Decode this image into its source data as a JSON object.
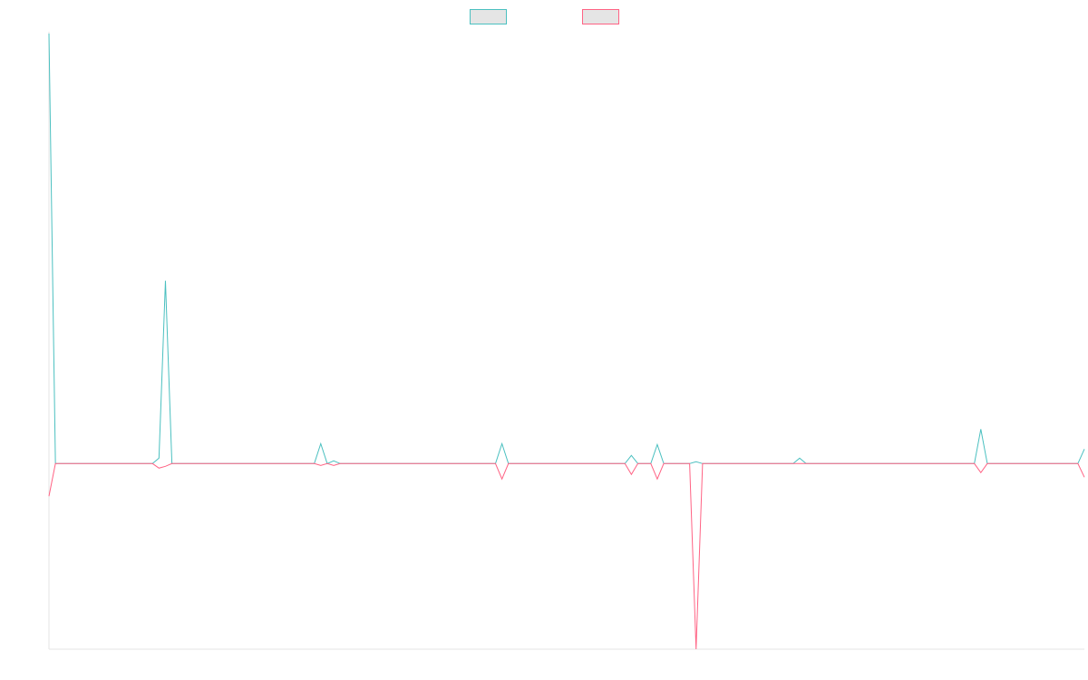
{
  "chart_data": {
    "type": "line",
    "title": "",
    "xlabel": "",
    "ylabel": "",
    "x": [
      0,
      1,
      2,
      3,
      4,
      5,
      6,
      7,
      8,
      9,
      10,
      11,
      12,
      13,
      14,
      15,
      16,
      17,
      18,
      19,
      20,
      21,
      22,
      23,
      24,
      25,
      26,
      27,
      28,
      29,
      30,
      31,
      32,
      33,
      34,
      35,
      36,
      37,
      38,
      39,
      40,
      41,
      42,
      43,
      44,
      45,
      46,
      47,
      48,
      49,
      50,
      51,
      52,
      53,
      54,
      55,
      56,
      57,
      58,
      59,
      60,
      61,
      62,
      63,
      64,
      65,
      66,
      67,
      68,
      69,
      70,
      71,
      72,
      73,
      74,
      75,
      76,
      77,
      78,
      79,
      80,
      81,
      82,
      83,
      84,
      85,
      86,
      87,
      88,
      89,
      90,
      91,
      92,
      93,
      94,
      95,
      96,
      97,
      98,
      99,
      100,
      101,
      102,
      103,
      104,
      105,
      106,
      107,
      108,
      109,
      110,
      111,
      112,
      113,
      114,
      115,
      116,
      117,
      118,
      119,
      120,
      121,
      122,
      123,
      124,
      125,
      126,
      127,
      128,
      129,
      130,
      131,
      132,
      133,
      134,
      135,
      136,
      137,
      138,
      139,
      140,
      141,
      142,
      143,
      144,
      145,
      146,
      147,
      148,
      149,
      150,
      151,
      152,
      153,
      154,
      155,
      156,
      157,
      158,
      159,
      160
    ],
    "ylim": [
      -205,
      475
    ],
    "grid": false,
    "legend_position": "top-center",
    "series": [
      {
        "name": "",
        "color": "#4bc0c0",
        "values": [
          475,
          0,
          0,
          0,
          0,
          0,
          0,
          0,
          0,
          0,
          0,
          0,
          0,
          0,
          0,
          0,
          0,
          6,
          202,
          0,
          0,
          0,
          0,
          0,
          0,
          0,
          0,
          0,
          0,
          0,
          0,
          0,
          0,
          0,
          0,
          0,
          0,
          0,
          0,
          0,
          0,
          0,
          22,
          0,
          3,
          0,
          0,
          0,
          0,
          0,
          0,
          0,
          0,
          0,
          0,
          0,
          0,
          0,
          0,
          0,
          0,
          0,
          0,
          0,
          0,
          0,
          0,
          0,
          0,
          0,
          22,
          0,
          0,
          0,
          0,
          0,
          0,
          0,
          0,
          0,
          0,
          0,
          0,
          0,
          0,
          0,
          0,
          0,
          0,
          0,
          9,
          0,
          0,
          0,
          21,
          0,
          0,
          0,
          0,
          0,
          2,
          0,
          0,
          0,
          0,
          0,
          0,
          0,
          0,
          0,
          0,
          0,
          0,
          0,
          0,
          0,
          6,
          0,
          0,
          0,
          0,
          0,
          0,
          0,
          0,
          0,
          0,
          0,
          0,
          0,
          0,
          0,
          0,
          0,
          0,
          0,
          0,
          0,
          0,
          0,
          0,
          0,
          0,
          0,
          38,
          0,
          0,
          0,
          0,
          0,
          0,
          0,
          0,
          0,
          0,
          0,
          0,
          0,
          0,
          0,
          16
        ]
      },
      {
        "name": "",
        "color": "#ff6384",
        "values": [
          -36,
          0,
          0,
          0,
          0,
          0,
          0,
          0,
          0,
          0,
          0,
          0,
          0,
          0,
          0,
          0,
          0,
          -5,
          -3,
          0,
          0,
          0,
          0,
          0,
          0,
          0,
          0,
          0,
          0,
          0,
          0,
          0,
          0,
          0,
          0,
          0,
          0,
          0,
          0,
          0,
          0,
          0,
          -2,
          0,
          -2,
          0,
          0,
          0,
          0,
          0,
          0,
          0,
          0,
          0,
          0,
          0,
          0,
          0,
          0,
          0,
          0,
          0,
          0,
          0,
          0,
          0,
          0,
          0,
          0,
          0,
          -17,
          0,
          0,
          0,
          0,
          0,
          0,
          0,
          0,
          0,
          0,
          0,
          0,
          0,
          0,
          0,
          0,
          0,
          0,
          0,
          -12,
          0,
          0,
          0,
          -17,
          0,
          0,
          0,
          0,
          0,
          -205,
          0,
          0,
          0,
          0,
          0,
          0,
          0,
          0,
          0,
          0,
          0,
          0,
          0,
          0,
          0,
          0,
          0,
          0,
          0,
          0,
          0,
          0,
          0,
          0,
          0,
          0,
          0,
          0,
          0,
          0,
          0,
          0,
          0,
          0,
          0,
          0,
          0,
          0,
          0,
          0,
          0,
          0,
          0,
          -10,
          0,
          0,
          0,
          0,
          0,
          0,
          0,
          0,
          0,
          0,
          0,
          0,
          0,
          0,
          0,
          -15
        ]
      }
    ]
  }
}
